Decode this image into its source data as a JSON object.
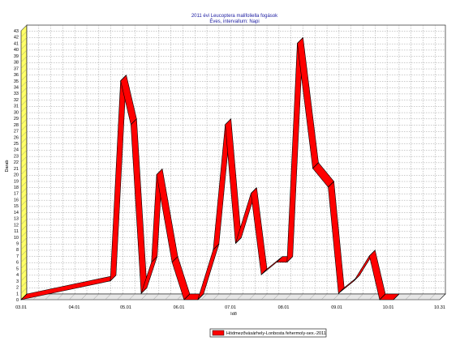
{
  "chart_data": {
    "type": "line",
    "title": "2011 évi Leucoptera malifoliella fogások",
    "subtitle": "Éves, intervallum: Napi",
    "xlabel": "Idő",
    "ylabel": "Darab",
    "ylim": [
      0,
      43
    ],
    "yticks": [
      0,
      1,
      2,
      3,
      4,
      5,
      6,
      7,
      8,
      9,
      10,
      11,
      12,
      13,
      14,
      15,
      16,
      17,
      18,
      19,
      20,
      21,
      22,
      23,
      24,
      25,
      26,
      27,
      28,
      29,
      30,
      31,
      32,
      33,
      34,
      35,
      36,
      37,
      38,
      39,
      40,
      41,
      42,
      43
    ],
    "xticks": [
      "03.01",
      "04.01",
      "05.01",
      "06.01",
      "07.01",
      "08.01",
      "09.01",
      "10.01",
      "10.31"
    ],
    "grid": true,
    "legend_position": "bottom-center",
    "series": [
      {
        "name": "Hódmezővásárhely-Lonbosta fehermoly-sex.-2011",
        "color": "#ff0000",
        "points": [
          {
            "x": "03.01",
            "y": 0
          },
          {
            "x": "04.22",
            "y": 3
          },
          {
            "x": "04.28",
            "y": 35
          },
          {
            "x": "05.04",
            "y": 28
          },
          {
            "x": "05.10",
            "y": 1
          },
          {
            "x": "05.16",
            "y": 6
          },
          {
            "x": "05.19",
            "y": 20
          },
          {
            "x": "05.28",
            "y": 6
          },
          {
            "x": "06.04",
            "y": 0
          },
          {
            "x": "06.12",
            "y": 0
          },
          {
            "x": "06.21",
            "y": 8
          },
          {
            "x": "06.28",
            "y": 28
          },
          {
            "x": "07.04",
            "y": 9
          },
          {
            "x": "07.13",
            "y": 17
          },
          {
            "x": "07.19",
            "y": 4
          },
          {
            "x": "07.28",
            "y": 6
          },
          {
            "x": "08.03",
            "y": 6
          },
          {
            "x": "08.09",
            "y": 41
          },
          {
            "x": "08.18",
            "y": 21
          },
          {
            "x": "08.27",
            "y": 18
          },
          {
            "x": "09.02",
            "y": 1
          },
          {
            "x": "09.11",
            "y": 3
          },
          {
            "x": "09.20",
            "y": 7
          },
          {
            "x": "09.26",
            "y": 0
          },
          {
            "x": "10.04",
            "y": 0
          }
        ]
      }
    ]
  }
}
